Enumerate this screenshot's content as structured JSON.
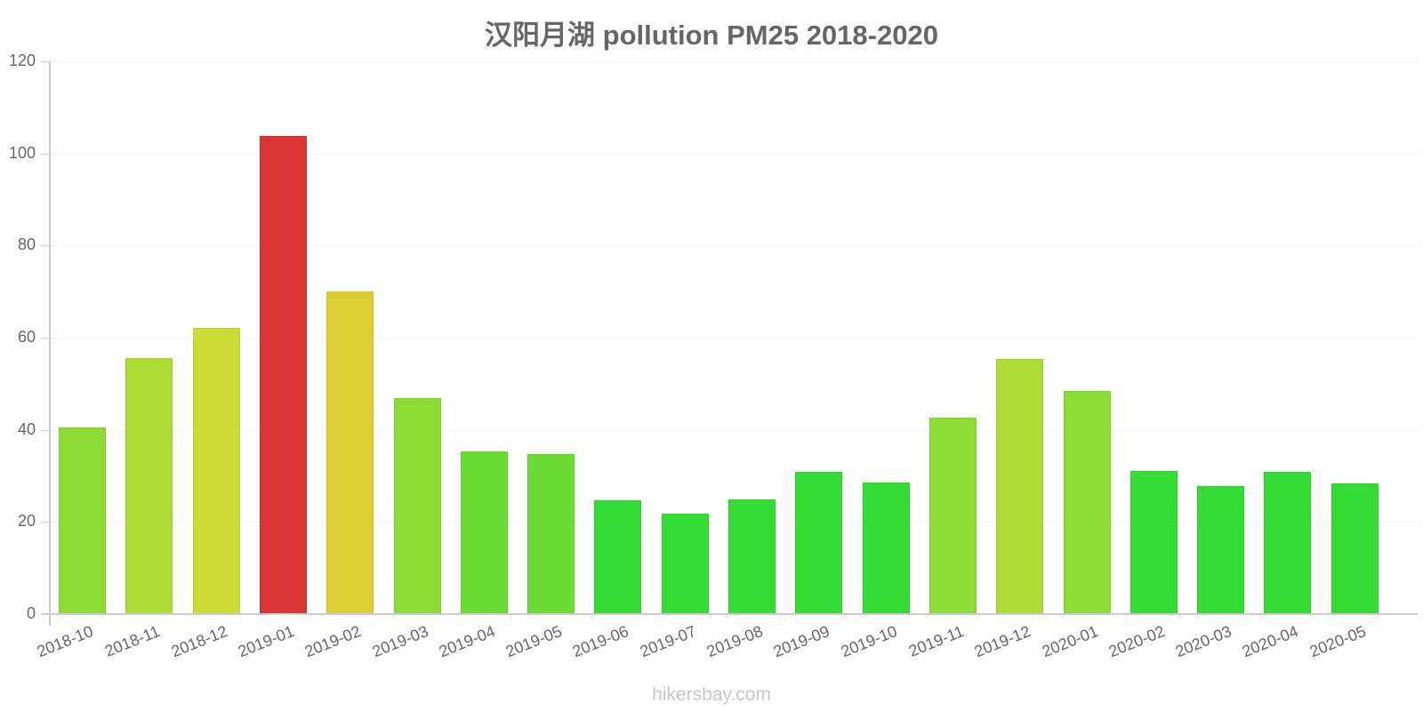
{
  "title": "汉阳月湖 pollution PM25 2018-2020",
  "watermark": "hikersbay.com",
  "chart_data": {
    "type": "bar",
    "title": "汉阳月湖 pollution PM25 2018-2020",
    "xlabel": "",
    "ylabel": "",
    "ylim": [
      0,
      120
    ],
    "yticks": [
      0,
      20,
      40,
      60,
      80,
      100,
      120
    ],
    "grid": true,
    "legend": null,
    "categories": [
      "2018-10",
      "2018-11",
      "2018-12",
      "2019-01",
      "2019-02",
      "2019-03",
      "2019-04",
      "2019-05",
      "2019-06",
      "2019-07",
      "2019-08",
      "2019-09",
      "2019-10",
      "2019-11",
      "2019-12",
      "2020-01",
      "2020-02",
      "2020-03",
      "2020-04",
      "2020-05"
    ],
    "values": [
      40.5,
      55.6,
      62.2,
      103.8,
      70.0,
      46.8,
      35.3,
      34.8,
      24.6,
      21.8,
      24.8,
      30.9,
      28.5,
      42.7,
      55.4,
      48.4,
      31.0,
      27.8,
      30.8,
      28.3
    ],
    "colors": [
      "#8cdc35",
      "#addc35",
      "#cddd35",
      "#dc3535",
      "#dccd35",
      "#8cdc35",
      "#6cdc35",
      "#6cdc35",
      "#35dc35",
      "#35dc35",
      "#35dc35",
      "#35dc35",
      "#35dc35",
      "#8cdc35",
      "#addc35",
      "#8cdc35",
      "#35dc35",
      "#35dc35",
      "#35dc35",
      "#35dc35"
    ]
  }
}
